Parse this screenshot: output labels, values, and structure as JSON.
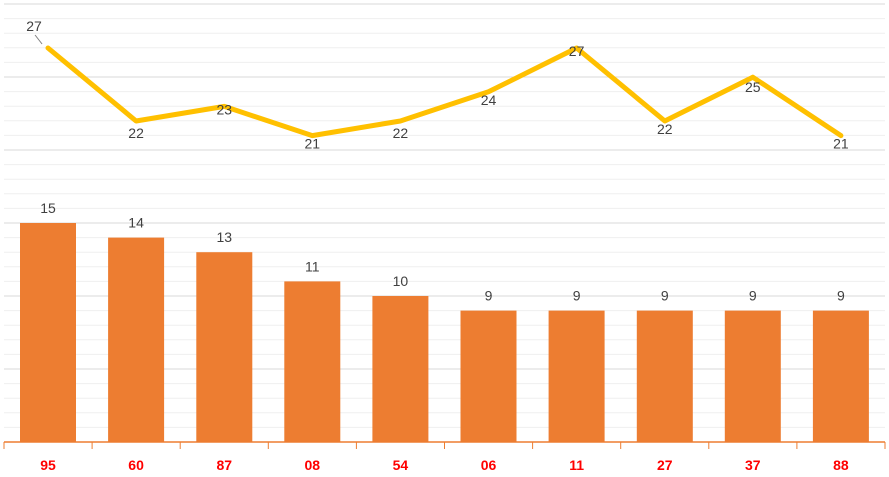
{
  "chart_data": {
    "type": "bar",
    "categories": [
      "95",
      "60",
      "87",
      "08",
      "54",
      "06",
      "11",
      "27",
      "37",
      "88"
    ],
    "series": [
      {
        "type": "bar",
        "values": [
          15,
          14,
          13,
          11,
          10,
          9,
          9,
          9,
          9,
          9
        ],
        "color": "#ED7D31"
      },
      {
        "type": "line",
        "values": [
          27,
          22,
          23,
          21,
          22,
          24,
          27,
          22,
          25,
          21
        ],
        "color": "#FFC000"
      }
    ],
    "category_label_color": "#FF0000",
    "grid": true,
    "legend": "none",
    "title": "",
    "xlabel": "",
    "ylabel": ""
  }
}
